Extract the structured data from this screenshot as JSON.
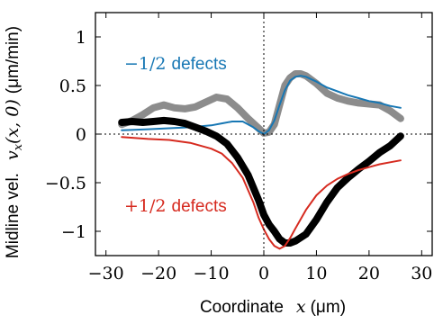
{
  "chart_data": {
    "type": "line",
    "xlabel_text": "Coordinate",
    "xlabel_math": "x",
    "xlabel_unit": "(μm)",
    "ylabel_text": "Midline vel.",
    "ylabel_math": "v",
    "ylabel_sub": "x",
    "ylabel_args": "(x, 0)",
    "ylabel_unit": "(μm/min)",
    "xlim": [
      -32,
      32
    ],
    "ylim": [
      -1.25,
      1.25
    ],
    "xticks": [
      -30,
      -20,
      -10,
      0,
      10,
      20,
      30
    ],
    "xtick_labels": [
      "−30",
      "−20",
      "−10",
      "0",
      "10",
      "20",
      "30"
    ],
    "yticks": [
      -1,
      -0.5,
      0,
      0.5,
      1
    ],
    "ytick_labels": [
      "−1",
      "−0.5",
      "0",
      "0.5",
      "1"
    ],
    "reference_lines": {
      "x": 0,
      "y": 0,
      "style": "dotted"
    },
    "annotations": [
      {
        "math": "−1/2",
        "word": "defects",
        "color": "#1777b4",
        "series": "minus-half-model"
      },
      {
        "math": "+1/2",
        "word": "defects",
        "color": "#d62a1f",
        "series": "plus-half-model"
      }
    ],
    "series": [
      {
        "id": "minus-half-experiment",
        "color": "#8c8c8c",
        "style": "thick",
        "x": [
          -27,
          -25,
          -23,
          -21,
          -19,
          -17,
          -15,
          -13,
          -11,
          -9,
          -7,
          -5,
          -3,
          -1,
          0,
          1,
          2,
          3,
          4,
          5,
          6,
          7,
          8,
          10,
          12,
          14,
          16,
          18,
          20,
          22,
          24,
          26
        ],
        "y": [
          0.1,
          0.14,
          0.2,
          0.27,
          0.3,
          0.27,
          0.26,
          0.28,
          0.33,
          0.38,
          0.36,
          0.27,
          0.16,
          0.06,
          0.01,
          0.02,
          0.1,
          0.3,
          0.5,
          0.58,
          0.62,
          0.62,
          0.6,
          0.52,
          0.42,
          0.37,
          0.34,
          0.32,
          0.31,
          0.3,
          0.24,
          0.16
        ]
      },
      {
        "id": "minus-half-model",
        "color": "#1777b4",
        "style": "thin",
        "x": [
          -27,
          -22,
          -18,
          -14,
          -10,
          -8,
          -6,
          -4,
          -2,
          -1,
          0,
          1,
          2,
          3,
          4,
          5,
          6,
          7,
          8,
          10,
          12,
          14,
          16,
          18,
          20,
          22,
          24,
          26
        ],
        "y": [
          0.04,
          0.05,
          0.06,
          0.07,
          0.09,
          0.11,
          0.13,
          0.13,
          0.07,
          0.03,
          0.0,
          0.04,
          0.14,
          0.3,
          0.45,
          0.55,
          0.59,
          0.6,
          0.59,
          0.54,
          0.48,
          0.44,
          0.4,
          0.37,
          0.34,
          0.32,
          0.29,
          0.27
        ]
      },
      {
        "id": "plus-half-experiment",
        "color": "#000000",
        "style": "thick",
        "x": [
          -27,
          -25,
          -23,
          -21,
          -19,
          -17,
          -15,
          -13,
          -11,
          -9,
          -7,
          -5,
          -3,
          -1,
          0,
          1,
          2,
          3,
          4,
          5,
          6,
          8,
          10,
          12,
          14,
          16,
          18,
          20,
          22,
          24,
          26
        ],
        "y": [
          0.12,
          0.13,
          0.12,
          0.13,
          0.14,
          0.13,
          0.11,
          0.07,
          0.03,
          -0.02,
          -0.1,
          -0.24,
          -0.42,
          -0.68,
          -0.83,
          -0.93,
          -1.0,
          -1.08,
          -1.12,
          -1.12,
          -1.1,
          -1.03,
          -0.88,
          -0.7,
          -0.55,
          -0.45,
          -0.36,
          -0.28,
          -0.19,
          -0.12,
          -0.02
        ]
      },
      {
        "id": "plus-half-model",
        "color": "#d62a1f",
        "style": "thin",
        "x": [
          -27,
          -22,
          -18,
          -14,
          -10,
          -8,
          -6,
          -4,
          -2,
          -1,
          0,
          1,
          2,
          3,
          4,
          5,
          6,
          8,
          10,
          12,
          14,
          16,
          18,
          20,
          22,
          24,
          26
        ],
        "y": [
          -0.03,
          -0.05,
          -0.06,
          -0.09,
          -0.15,
          -0.2,
          -0.3,
          -0.45,
          -0.7,
          -0.86,
          -0.98,
          -1.08,
          -1.15,
          -1.18,
          -1.15,
          -1.07,
          -0.97,
          -0.78,
          -0.63,
          -0.53,
          -0.46,
          -0.41,
          -0.37,
          -0.34,
          -0.31,
          -0.29,
          -0.27
        ]
      }
    ]
  }
}
